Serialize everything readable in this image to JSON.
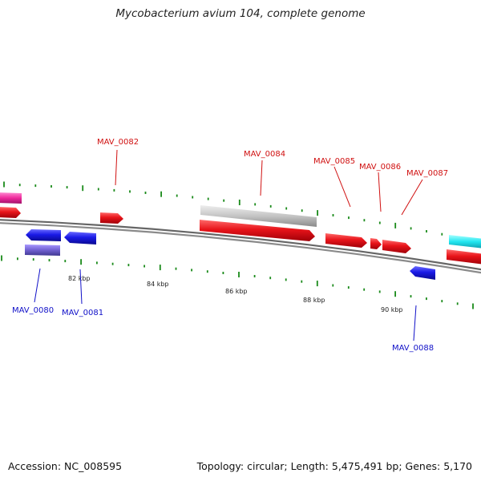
{
  "title": "Mycobacterium avium 104, complete genome",
  "footer": {
    "accession": "Accession: NC_008595",
    "info": "Topology: circular; Length: 5,475,491 bp; Genes: 5,170"
  },
  "colors": {
    "forward_gene": "#e8141a",
    "reverse_gene": "#1a1ae6",
    "forward_label": "#d01010",
    "reverse_label": "#1010c8",
    "backbone": "#777777",
    "tick": "#1a8a1a",
    "gray_feature": "#c4c4c4",
    "pink_feature": "#ee2a9c",
    "cyan_feature": "#22e6f0",
    "purple_feature": "#7060d0"
  },
  "scale_labels": [
    {
      "text": "82 kbp"
    },
    {
      "text": "84 kbp"
    },
    {
      "text": "86 kbp"
    },
    {
      "text": "88 kbp"
    },
    {
      "text": "90 kbp"
    }
  ],
  "gene_labels": {
    "forward": [
      "MAV_0082",
      "MAV_0084",
      "MAV_0085",
      "MAV_0086",
      "MAV_0087"
    ],
    "reverse": [
      "MAV_0080",
      "MAV_0081",
      "MAV_0088"
    ]
  }
}
